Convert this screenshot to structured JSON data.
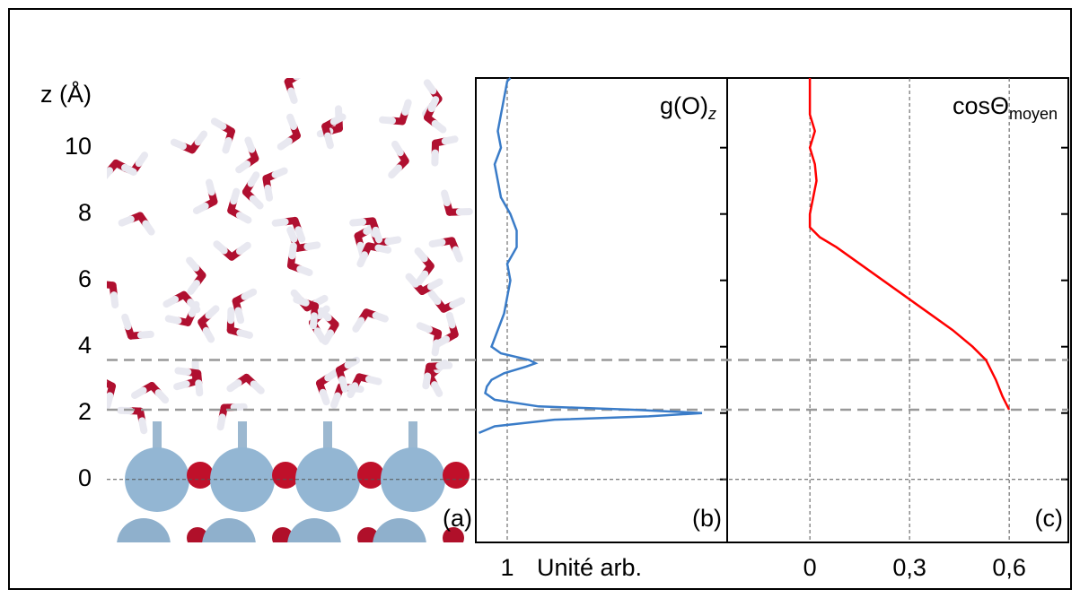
{
  "chart_data": [
    {
      "type": "image",
      "ylabel": "z (Å)",
      "ylim": [
        -1.9,
        12.1
      ],
      "yticks": [
        0,
        2,
        4,
        6,
        8,
        10
      ],
      "panel_label": "(a)",
      "dashed_levels": [
        2.1,
        3.6
      ]
    },
    {
      "type": "line",
      "title": "g(O)",
      "title_subscript": "z",
      "panel_label": "(b)",
      "xlabel": "Unité arb.",
      "xlim": [
        0,
        8
      ],
      "xticks": [
        1
      ],
      "color": "#3a7cc8",
      "z": [
        1.4,
        1.6,
        1.8,
        1.9,
        2.0,
        2.1,
        2.2,
        2.4,
        2.6,
        2.8,
        3.0,
        3.2,
        3.4,
        3.5,
        3.6,
        3.8,
        4.0,
        4.5,
        5,
        5.5,
        6,
        6.5,
        7,
        7.5,
        8,
        8.5,
        9,
        9.5,
        10,
        10.5,
        11,
        11.5,
        12,
        12.1
      ],
      "values": [
        0.1,
        0.6,
        2.5,
        5.5,
        7.2,
        5.0,
        2.0,
        0.6,
        0.3,
        0.35,
        0.5,
        0.9,
        1.6,
        1.9,
        1.7,
        0.8,
        0.5,
        0.7,
        0.9,
        1.0,
        1.1,
        1.0,
        1.3,
        1.3,
        1.1,
        0.8,
        0.7,
        0.6,
        0.8,
        0.7,
        0.8,
        0.9,
        1.0,
        1.1
      ]
    },
    {
      "type": "line",
      "title": "cosΘ",
      "title_subscript": "moyen",
      "panel_label": "(c)",
      "xlim": [
        -0.249,
        0.778
      ],
      "xticks": [
        0,
        {
          "value": 0.3,
          "label": "0,3"
        },
        {
          "value": 0.6,
          "label": "0,6"
        }
      ],
      "color": "#ff0000",
      "z": [
        2.1,
        2.5,
        3,
        3.6,
        4,
        4.5,
        5,
        5.5,
        6,
        6.5,
        7,
        7.3,
        7.6,
        8,
        8.5,
        9,
        9.5,
        10,
        10.5,
        11,
        11.5,
        12.1
      ],
      "values": [
        0.6,
        0.58,
        0.56,
        0.53,
        0.49,
        0.43,
        0.36,
        0.29,
        0.22,
        0.15,
        0.08,
        0.03,
        0.0,
        0.0,
        0.01,
        0.02,
        0.015,
        0.0,
        0.015,
        0.0,
        0.0,
        0.0
      ]
    }
  ]
}
